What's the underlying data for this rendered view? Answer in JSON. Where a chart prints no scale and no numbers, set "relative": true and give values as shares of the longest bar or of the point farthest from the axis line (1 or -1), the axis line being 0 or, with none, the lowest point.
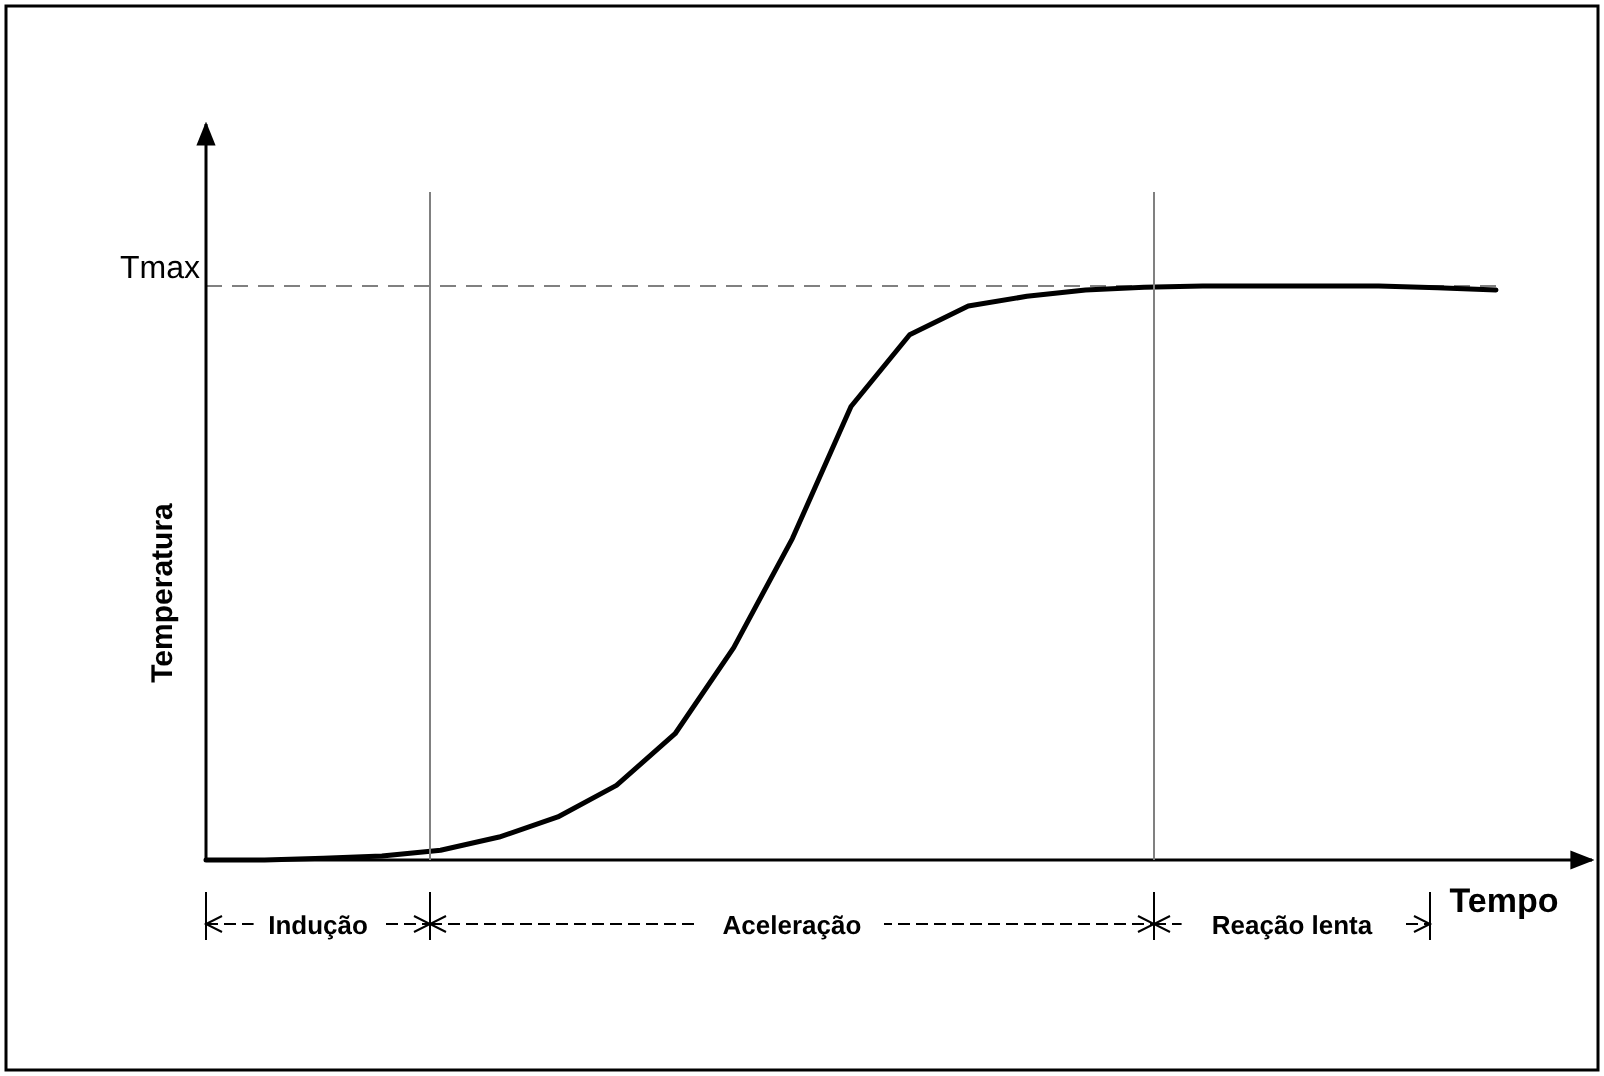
{
  "chart_data": {
    "type": "line",
    "relative": true,
    "xlabel": "Tempo",
    "ylabel": "Temperatura",
    "marker": "none",
    "line_style": "solid",
    "categories": [
      null,
      null,
      null,
      null,
      null,
      null,
      null,
      null,
      null,
      null,
      null,
      null,
      null,
      null,
      null,
      null,
      null,
      null,
      null,
      null,
      null,
      null,
      null
    ],
    "series": [
      {
        "color": "#000000",
        "values": [
          0,
          0,
          0.003,
          0.007,
          0.017,
          0.04,
          0.075,
          0.13,
          0.22,
          0.37,
          0.56,
          0.79,
          0.915,
          0.965,
          0.982,
          0.993,
          0.998,
          1,
          1,
          1,
          1,
          0.997,
          0.993
        ]
      }
    ],
    "ref_lines": [
      {
        "axis": "y",
        "value": 1,
        "label": "Tmax",
        "color": "#808080",
        "line_style": "dashed"
      }
    ],
    "annotations": [
      "Indução",
      "Aceleração",
      "Reação lenta"
    ]
  }
}
